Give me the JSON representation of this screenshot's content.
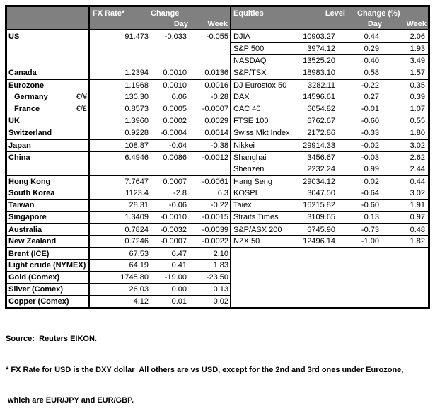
{
  "table": {
    "header": {
      "fx_rate": "FX Rate*",
      "change": "Change",
      "day": "Day",
      "week": "Week",
      "equities": "Equities",
      "level": "Level",
      "change_pct": "Change (%)"
    },
    "rows": [
      {
        "fx": {
          "label": "US",
          "pair": "",
          "rate": "91.473",
          "day": "-0.033",
          "week": "-0.055",
          "top": "none",
          "indent": false
        },
        "eq": {
          "name": "DJIA",
          "level": "10903.27",
          "day": "0.44",
          "week": "2.06",
          "top": "none"
        }
      },
      {
        "fx": null,
        "fx_top": "none",
        "eq": {
          "name": "S&P 500",
          "level": "3974.12",
          "day": "0.29",
          "week": "1.93",
          "top": "thin"
        }
      },
      {
        "fx": null,
        "fx_top": "none",
        "eq": {
          "name": "NASDAQ",
          "level": "13525.20",
          "day": "0.40",
          "week": "3.49",
          "top": "thin"
        }
      },
      {
        "fx": {
          "label": "Canada",
          "pair": "",
          "rate": "1.2394",
          "day": "0.0010",
          "week": "0.0136",
          "top": "thin",
          "indent": false
        },
        "eq": {
          "name": "S&P/TSX",
          "level": "18983.10",
          "day": "0.58",
          "week": "1.57",
          "top": "thin"
        }
      },
      {
        "fx": {
          "label": "Eurozone",
          "pair": "",
          "rate": "1.1968",
          "day": "0.0010",
          "week": "0.0016",
          "top": "thick",
          "indent": false
        },
        "eq": {
          "name": "DJ Eurostox 50",
          "level": "3282.11",
          "day": "-0.22",
          "week": "0.35",
          "top": "thick"
        }
      },
      {
        "fx": {
          "label": "Germany",
          "pair": "€/¥",
          "rate": "130.30",
          "day": "0.06",
          "week": "-0.28",
          "top": "thin",
          "indent": true
        },
        "eq": {
          "name": "DAX",
          "level": "14596.61",
          "day": "0.27",
          "week": "0.39",
          "top": "thin"
        }
      },
      {
        "fx": {
          "label": "France",
          "pair": "€/£",
          "rate": "0.8573",
          "day": "0.0005",
          "week": "-0.0007",
          "top": "thin",
          "indent": true
        },
        "eq": {
          "name": "CAC 40",
          "level": "6054.82",
          "day": "-0.01",
          "week": "1.07",
          "top": "thin"
        }
      },
      {
        "fx": {
          "label": "UK",
          "pair": "",
          "rate": "1.3960",
          "day": "0.0002",
          "week": "0.0029",
          "top": "thin",
          "indent": false
        },
        "eq": {
          "name": "FTSE 100",
          "level": "6762.67",
          "day": "-0.60",
          "week": "0.55",
          "top": "thin"
        }
      },
      {
        "fx": {
          "label": "Switzerland",
          "pair": "",
          "rate": "0.9228",
          "day": "-0.0004",
          "week": "0.0014",
          "top": "thin",
          "indent": false
        },
        "eq": {
          "name": "Swiss Mkt Index",
          "level": "2172.86",
          "day": "-0.33",
          "week": "1.80",
          "top": "thin"
        }
      },
      {
        "fx": {
          "label": "Japan",
          "pair": "",
          "rate": "108.87",
          "day": "-0.04",
          "week": "-0.38",
          "top": "thick",
          "indent": false
        },
        "eq": {
          "name": "Nikkei",
          "level": "29914.33",
          "day": "-0.02",
          "week": "3.02",
          "top": "thick"
        }
      },
      {
        "fx": {
          "label": "China",
          "pair": "",
          "rate": "6.4946",
          "day": "0.0086",
          "week": "-0.0012",
          "top": "thick",
          "indent": false
        },
        "eq": {
          "name": "Shanghai",
          "level": "3456.67",
          "day": "-0.03",
          "week": "2.62",
          "top": "thick"
        }
      },
      {
        "fx": null,
        "fx_top": "none",
        "eq": {
          "name": "Shenzen",
          "level": "2232.24",
          "day": "0.99",
          "week": "2.44",
          "top": "thin"
        }
      },
      {
        "fx": {
          "label": "Hong Kong",
          "pair": "",
          "rate": "7.7647",
          "day": "0.0007",
          "week": "-0.0061",
          "top": "thick",
          "indent": false
        },
        "eq": {
          "name": "Hang Seng",
          "level": "29034.12",
          "day": "0.02",
          "week": "0.44",
          "top": "thick"
        }
      },
      {
        "fx": {
          "label": "South Korea",
          "pair": "",
          "rate": "1123.4",
          "day": "-2.8",
          "week": "6.3",
          "top": "thin",
          "indent": false
        },
        "eq": {
          "name": "KOSPI",
          "level": "3047.50",
          "day": "-0.64",
          "week": "3.02",
          "top": "thin"
        }
      },
      {
        "fx": {
          "label": "Taiwan",
          "pair": "",
          "rate": "28.31",
          "day": "-0.06",
          "week": "-0.22",
          "top": "thin",
          "indent": false
        },
        "eq": {
          "name": "Taiex",
          "level": "16215.82",
          "day": "-0.60",
          "week": "1.91",
          "top": "thin"
        }
      },
      {
        "fx": {
          "label": "Singapore",
          "pair": "",
          "rate": "1.3409",
          "day": "-0.0010",
          "week": "-0.0015",
          "top": "thin",
          "indent": false
        },
        "eq": {
          "name": "Straits Times",
          "level": "3109.65",
          "day": "0.13",
          "week": "0.97",
          "top": "thin"
        }
      },
      {
        "fx": {
          "label": "Australia",
          "pair": "",
          "rate": "0.7824",
          "day": "-0.0032",
          "week": "-0.0039",
          "top": "thick",
          "indent": false
        },
        "eq": {
          "name": "S&P/ASX  200",
          "level": "6745.90",
          "day": "-0.73",
          "week": "0.48",
          "top": "thick"
        }
      },
      {
        "fx": {
          "label": "New Zealand",
          "pair": "",
          "rate": "0.7246",
          "day": "-0.0007",
          "week": "-0.0022",
          "top": "thin",
          "indent": false
        },
        "eq": {
          "name": "NZX 50",
          "level": "12496.14",
          "day": "-1.00",
          "week": "1.82",
          "top": "thin"
        }
      },
      {
        "fx": {
          "label": "Brent (ICE)",
          "pair": "",
          "rate": "67.53",
          "day": "0.47",
          "week": "2.10",
          "top": "thick",
          "indent": false
        },
        "eq": null,
        "eq_top": "thick"
      },
      {
        "fx": {
          "label": "Light crude (NYMEX)",
          "pair": "",
          "rate": "64.19",
          "day": "0.41",
          "week": "1.83",
          "top": "thin",
          "indent": false
        },
        "eq": null,
        "eq_top": "none"
      },
      {
        "fx": {
          "label": "Gold (Comex)",
          "pair": "",
          "rate": "1745.80",
          "day": "-19.00",
          "week": "-23.50",
          "top": "thin",
          "indent": false
        },
        "eq": null,
        "eq_top": "none"
      },
      {
        "fx": {
          "label": "Silver (Comex)",
          "pair": "",
          "rate": "26.03",
          "day": "0.00",
          "week": "0.13",
          "top": "thin",
          "indent": false
        },
        "eq": null,
        "eq_top": "none"
      },
      {
        "fx": {
          "label": "Copper (Comex)",
          "pair": "",
          "rate": "4.12",
          "day": "0.01",
          "week": "0.02",
          "top": "thin",
          "indent": false
        },
        "eq": null,
        "eq_top": "none"
      }
    ]
  },
  "footnotes": {
    "source": "Source:  Reuters EIKON.",
    "note_line1": "* FX Rate for USD is the DXY dollar  All others are vs USD, except for the 2nd and 3rd ones under Eurozone,",
    "note_line2": "which are EUR/JPY and EUR/GBP."
  },
  "colors": {
    "header_bg": "#808080",
    "header_text": "#ffffff",
    "border": "#000000",
    "text": "#000000"
  }
}
